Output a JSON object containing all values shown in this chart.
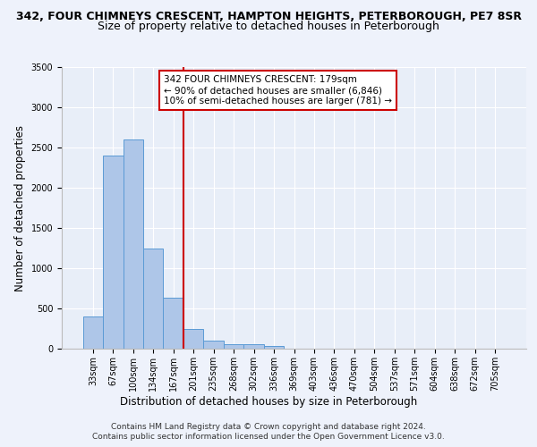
{
  "title_line1": "342, FOUR CHIMNEYS CRESCENT, HAMPTON HEIGHTS, PETERBOROUGH, PE7 8SR",
  "title_line2": "Size of property relative to detached houses in Peterborough",
  "xlabel": "Distribution of detached houses by size in Peterborough",
  "ylabel": "Number of detached properties",
  "footnote1": "Contains HM Land Registry data © Crown copyright and database right 2024.",
  "footnote2": "Contains public sector information licensed under the Open Government Licence v3.0.",
  "annotation_line1": "342 FOUR CHIMNEYS CRESCENT: 179sqm",
  "annotation_line2": "← 90% of detached houses are smaller (6,846)",
  "annotation_line3": "10% of semi-detached houses are larger (781) →",
  "bar_color": "#aec6e8",
  "bar_edge_color": "#5b9bd5",
  "vline_color": "#cc0000",
  "vline_x_index": 4.5,
  "categories": [
    "33sqm",
    "67sqm",
    "100sqm",
    "134sqm",
    "167sqm",
    "201sqm",
    "235sqm",
    "268sqm",
    "302sqm",
    "336sqm",
    "369sqm",
    "403sqm",
    "436sqm",
    "470sqm",
    "504sqm",
    "537sqm",
    "571sqm",
    "604sqm",
    "638sqm",
    "672sqm",
    "705sqm"
  ],
  "values": [
    400,
    2400,
    2600,
    1250,
    630,
    240,
    100,
    60,
    55,
    30,
    0,
    0,
    0,
    0,
    0,
    0,
    0,
    0,
    0,
    0,
    0
  ],
  "ylim": [
    0,
    3500
  ],
  "yticks": [
    0,
    500,
    1000,
    1500,
    2000,
    2500,
    3000,
    3500
  ],
  "background_color": "#eef2fb",
  "plot_bg_color": "#e8eef8",
  "title_fontsize": 9,
  "subtitle_fontsize": 9,
  "axis_label_fontsize": 8.5,
  "tick_fontsize": 7,
  "footnote_fontsize": 6.5,
  "annotation_fontsize": 7.5
}
